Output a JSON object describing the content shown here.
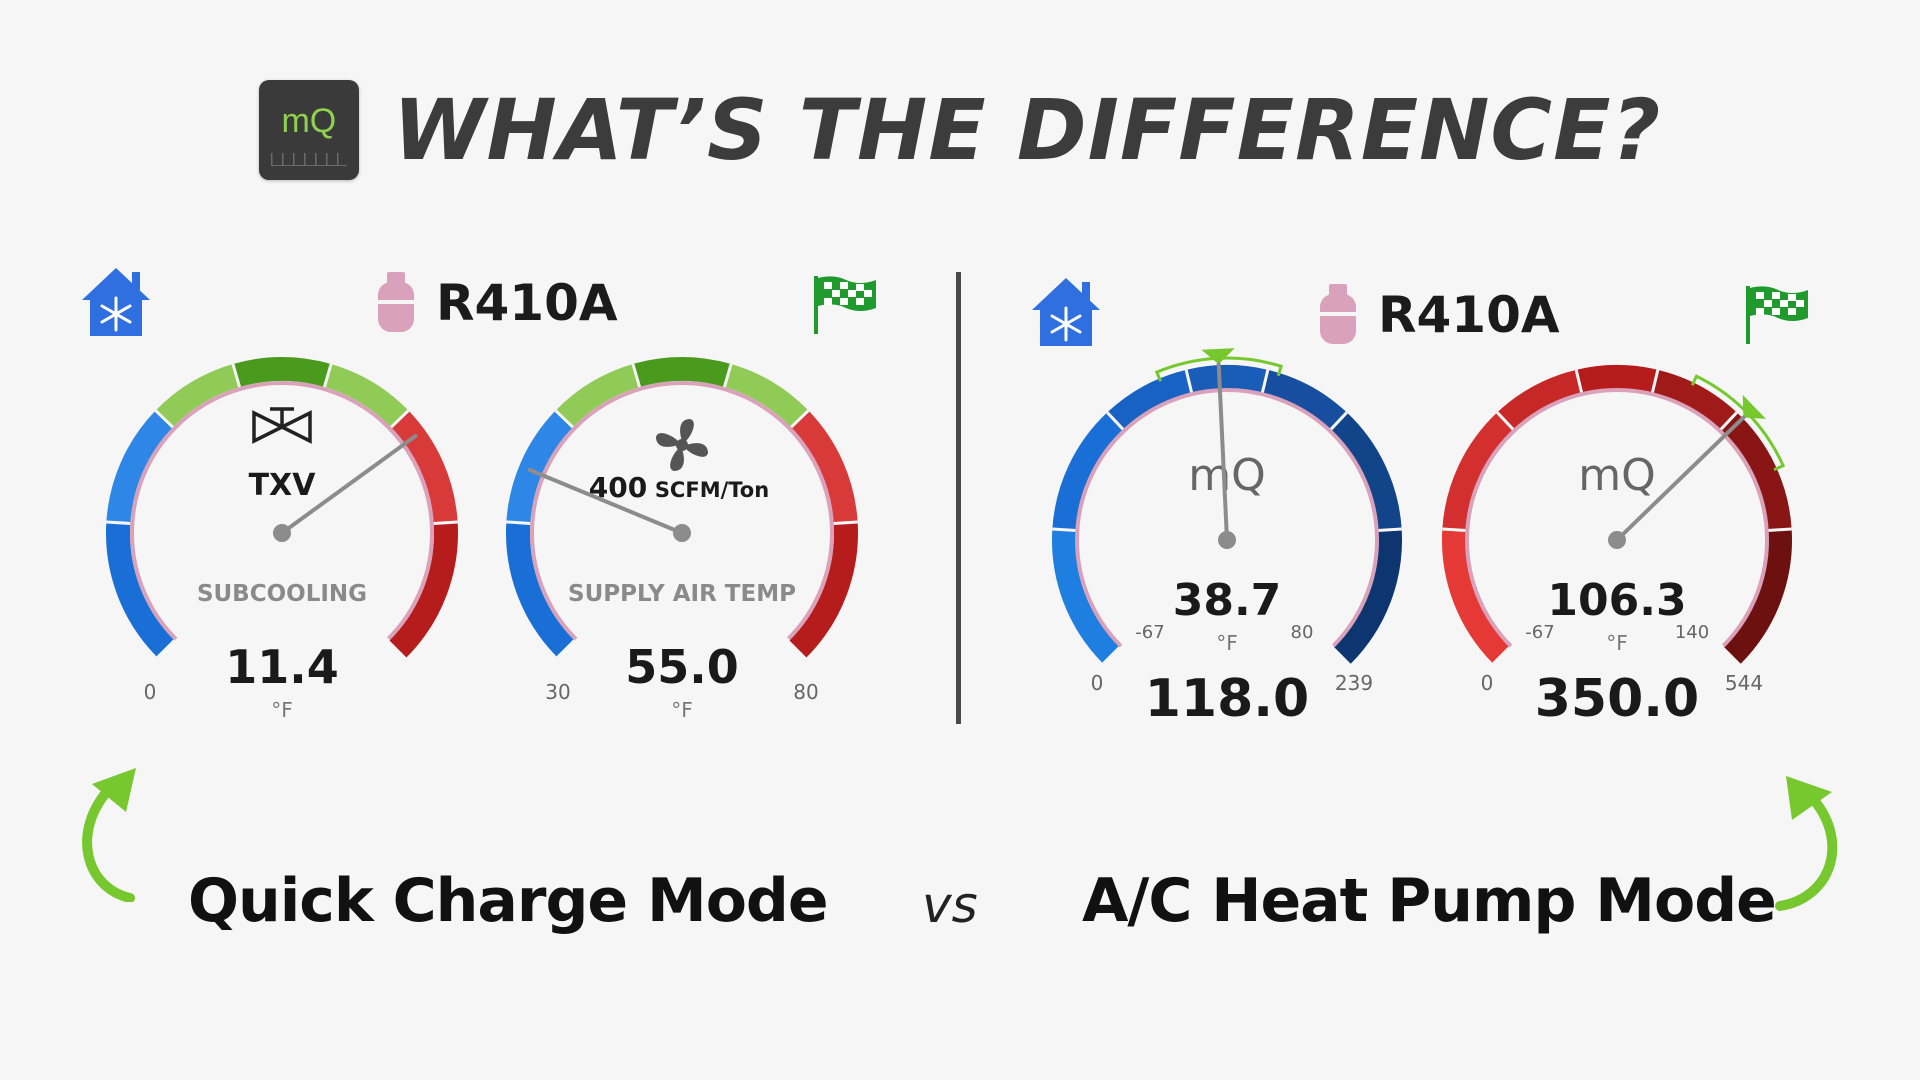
{
  "header": {
    "logo_text": "mQ",
    "title": "WHAT’S THE DIFFERENCE?"
  },
  "colors": {
    "green_light": "#8fcb56",
    "green_dark": "#4a9a1d",
    "blue": "#1a6fd6",
    "red": "#c92a2a",
    "pink_ring": "#d9a2ba",
    "accent_green": "#76c82e",
    "icon_blue": "#2f6fe0",
    "flag_green": "#1f9a2d"
  },
  "left_panel": {
    "refrigerant": "R410A",
    "icons": [
      "home-snowflake-icon",
      "refrigerant-tank-icon",
      "checkered-flag-icon"
    ],
    "gauges": [
      {
        "id": "subcooling",
        "icon": "txv-valve-icon",
        "icon_text": "TXV",
        "label": "SUBCOOLING",
        "value": "11.4",
        "unit": "°F",
        "min": "0",
        "max": "",
        "needle_fraction": 0.7
      },
      {
        "id": "supply-air",
        "icon": "fan-icon",
        "target_value": "400",
        "target_unit": "SCFM/Ton",
        "label": "SUPPLY AIR TEMP",
        "value": "55.0",
        "unit": "°F",
        "min": "30",
        "max": "80",
        "needle_fraction": 0.25
      }
    ],
    "mode_label": "Quick Charge Mode"
  },
  "vs_label": "vs",
  "right_panel": {
    "refrigerant": "R410A",
    "icons": [
      "home-snowflake-icon",
      "refrigerant-tank-icon",
      "checkered-flag-icon"
    ],
    "gauges": [
      {
        "id": "suction",
        "theme": "blue",
        "watermark": "mQ",
        "inner_value": "38.7",
        "inner_unit": "°F",
        "inner_min": "-67",
        "inner_max": "80",
        "value": "118.0",
        "min": "0",
        "max": "239",
        "needle_fraction": 0.49
      },
      {
        "id": "liquid",
        "theme": "red",
        "watermark": "mQ",
        "inner_value": "106.3",
        "inner_unit": "°F",
        "inner_min": "-67",
        "inner_max": "140",
        "value": "350.0",
        "min": "0",
        "max": "544",
        "needle_fraction": 0.67
      }
    ],
    "mode_label": "A/C Heat Pump Mode"
  }
}
